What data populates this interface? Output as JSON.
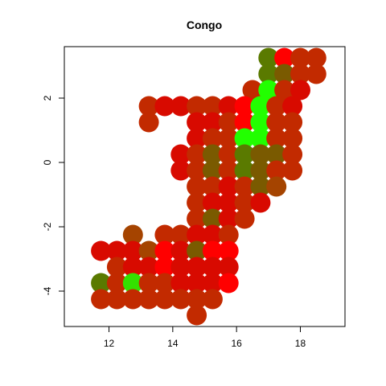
{
  "chart_data": {
    "type": "scatter",
    "title": "Congo",
    "xlabel": "",
    "ylabel": "",
    "xlim": [
      10.6,
      19.4
    ],
    "ylim": [
      -5.1,
      3.6
    ],
    "xticks": [
      12,
      14,
      16,
      18
    ],
    "yticks": [
      -4,
      -2,
      0,
      2
    ],
    "yticks_rotated": true,
    "grid": false,
    "legend": "none",
    "marker": "filled-circle",
    "colors": {
      "red": "#ff0000",
      "darkred": "#d80a00",
      "rust": "#c22a00",
      "olive": "#a54400",
      "brownolive": "#7a5a00",
      "darkgreen": "#5a7a00",
      "green": "#33e000",
      "brightgreen": "#22ff00"
    },
    "points": [
      {
        "x": 17.0,
        "y": 3.25,
        "c": "darkgreen"
      },
      {
        "x": 17.5,
        "y": 3.25,
        "c": "red"
      },
      {
        "x": 18.0,
        "y": 3.25,
        "c": "rust"
      },
      {
        "x": 18.5,
        "y": 3.25,
        "c": "rust"
      },
      {
        "x": 17.0,
        "y": 2.75,
        "c": "darkgreen"
      },
      {
        "x": 17.5,
        "y": 2.75,
        "c": "brownolive"
      },
      {
        "x": 18.0,
        "y": 2.75,
        "c": "rust"
      },
      {
        "x": 18.5,
        "y": 2.75,
        "c": "rust"
      },
      {
        "x": 16.5,
        "y": 2.25,
        "c": "rust"
      },
      {
        "x": 17.0,
        "y": 2.25,
        "c": "brightgreen"
      },
      {
        "x": 17.5,
        "y": 2.25,
        "c": "rust"
      },
      {
        "x": 18.0,
        "y": 2.25,
        "c": "darkred"
      },
      {
        "x": 13.25,
        "y": 1.75,
        "c": "rust"
      },
      {
        "x": 13.75,
        "y": 1.75,
        "c": "darkred"
      },
      {
        "x": 14.25,
        "y": 1.75,
        "c": "darkred"
      },
      {
        "x": 14.75,
        "y": 1.75,
        "c": "rust"
      },
      {
        "x": 15.25,
        "y": 1.75,
        "c": "rust"
      },
      {
        "x": 15.75,
        "y": 1.75,
        "c": "darkred"
      },
      {
        "x": 16.25,
        "y": 1.75,
        "c": "red"
      },
      {
        "x": 16.75,
        "y": 1.75,
        "c": "brightgreen"
      },
      {
        "x": 17.25,
        "y": 1.75,
        "c": "rust"
      },
      {
        "x": 17.75,
        "y": 1.75,
        "c": "darkred"
      },
      {
        "x": 13.25,
        "y": 1.25,
        "c": "rust"
      },
      {
        "x": 14.75,
        "y": 1.25,
        "c": "darkred"
      },
      {
        "x": 15.25,
        "y": 1.25,
        "c": "darkred"
      },
      {
        "x": 15.75,
        "y": 1.25,
        "c": "rust"
      },
      {
        "x": 16.25,
        "y": 1.25,
        "c": "red"
      },
      {
        "x": 16.75,
        "y": 1.25,
        "c": "brightgreen"
      },
      {
        "x": 17.25,
        "y": 1.25,
        "c": "rust"
      },
      {
        "x": 17.75,
        "y": 1.25,
        "c": "rust"
      },
      {
        "x": 14.75,
        "y": 0.75,
        "c": "darkred"
      },
      {
        "x": 15.25,
        "y": 0.75,
        "c": "rust"
      },
      {
        "x": 15.75,
        "y": 0.75,
        "c": "rust"
      },
      {
        "x": 16.25,
        "y": 0.75,
        "c": "brightgreen"
      },
      {
        "x": 16.75,
        "y": 0.75,
        "c": "brightgreen"
      },
      {
        "x": 17.25,
        "y": 0.75,
        "c": "rust"
      },
      {
        "x": 17.75,
        "y": 0.75,
        "c": "rust"
      },
      {
        "x": 14.25,
        "y": 0.25,
        "c": "darkred"
      },
      {
        "x": 14.75,
        "y": 0.25,
        "c": "rust"
      },
      {
        "x": 15.25,
        "y": 0.25,
        "c": "brownolive"
      },
      {
        "x": 15.75,
        "y": 0.25,
        "c": "rust"
      },
      {
        "x": 16.25,
        "y": 0.25,
        "c": "darkgreen"
      },
      {
        "x": 16.75,
        "y": 0.25,
        "c": "brownolive"
      },
      {
        "x": 17.25,
        "y": 0.25,
        "c": "brownolive"
      },
      {
        "x": 17.75,
        "y": 0.25,
        "c": "rust"
      },
      {
        "x": 14.25,
        "y": -0.25,
        "c": "darkred"
      },
      {
        "x": 14.75,
        "y": -0.25,
        "c": "rust"
      },
      {
        "x": 15.25,
        "y": -0.25,
        "c": "brownolive"
      },
      {
        "x": 15.75,
        "y": -0.25,
        "c": "rust"
      },
      {
        "x": 16.25,
        "y": -0.25,
        "c": "darkgreen"
      },
      {
        "x": 16.75,
        "y": -0.25,
        "c": "brownolive"
      },
      {
        "x": 17.25,
        "y": -0.25,
        "c": "rust"
      },
      {
        "x": 17.75,
        "y": -0.25,
        "c": "rust"
      },
      {
        "x": 14.75,
        "y": -0.75,
        "c": "rust"
      },
      {
        "x": 15.25,
        "y": -0.75,
        "c": "rust"
      },
      {
        "x": 15.75,
        "y": -0.75,
        "c": "darkred"
      },
      {
        "x": 16.25,
        "y": -0.75,
        "c": "rust"
      },
      {
        "x": 16.75,
        "y": -0.75,
        "c": "brownolive"
      },
      {
        "x": 17.25,
        "y": -0.75,
        "c": "olive"
      },
      {
        "x": 14.75,
        "y": -1.25,
        "c": "rust"
      },
      {
        "x": 15.25,
        "y": -1.25,
        "c": "darkred"
      },
      {
        "x": 15.75,
        "y": -1.25,
        "c": "darkred"
      },
      {
        "x": 16.25,
        "y": -1.25,
        "c": "rust"
      },
      {
        "x": 16.75,
        "y": -1.25,
        "c": "darkred"
      },
      {
        "x": 14.75,
        "y": -1.75,
        "c": "rust"
      },
      {
        "x": 15.25,
        "y": -1.75,
        "c": "brownolive"
      },
      {
        "x": 15.75,
        "y": -1.75,
        "c": "darkred"
      },
      {
        "x": 16.25,
        "y": -1.75,
        "c": "rust"
      },
      {
        "x": 13.75,
        "y": -2.25,
        "c": "rust"
      },
      {
        "x": 14.25,
        "y": -2.25,
        "c": "rust"
      },
      {
        "x": 14.75,
        "y": -2.25,
        "c": "darkred"
      },
      {
        "x": 15.25,
        "y": -2.25,
        "c": "darkred"
      },
      {
        "x": 15.75,
        "y": -2.25,
        "c": "rust"
      },
      {
        "x": 12.75,
        "y": -2.25,
        "c": "olive"
      },
      {
        "x": 11.75,
        "y": -2.75,
        "c": "darkred"
      },
      {
        "x": 12.25,
        "y": -2.75,
        "c": "darkred"
      },
      {
        "x": 12.75,
        "y": -2.75,
        "c": "darkred"
      },
      {
        "x": 13.25,
        "y": -2.75,
        "c": "olive"
      },
      {
        "x": 13.75,
        "y": -2.75,
        "c": "red"
      },
      {
        "x": 14.25,
        "y": -2.75,
        "c": "darkred"
      },
      {
        "x": 14.75,
        "y": -2.75,
        "c": "brownolive"
      },
      {
        "x": 15.25,
        "y": -2.75,
        "c": "red"
      },
      {
        "x": 15.75,
        "y": -2.75,
        "c": "red"
      },
      {
        "x": 12.25,
        "y": -3.25,
        "c": "rust"
      },
      {
        "x": 12.75,
        "y": -3.25,
        "c": "darkred"
      },
      {
        "x": 13.25,
        "y": -3.25,
        "c": "darkred"
      },
      {
        "x": 13.75,
        "y": -3.25,
        "c": "red"
      },
      {
        "x": 14.25,
        "y": -3.25,
        "c": "darkred"
      },
      {
        "x": 14.75,
        "y": -3.25,
        "c": "darkred"
      },
      {
        "x": 15.25,
        "y": -3.25,
        "c": "darkred"
      },
      {
        "x": 15.75,
        "y": -3.25,
        "c": "darkred"
      },
      {
        "x": 11.75,
        "y": -3.75,
        "c": "darkgreen"
      },
      {
        "x": 12.25,
        "y": -3.75,
        "c": "rust"
      },
      {
        "x": 12.75,
        "y": -3.75,
        "c": "green"
      },
      {
        "x": 13.25,
        "y": -3.75,
        "c": "rust"
      },
      {
        "x": 13.75,
        "y": -3.75,
        "c": "rust"
      },
      {
        "x": 14.25,
        "y": -3.75,
        "c": "darkred"
      },
      {
        "x": 14.75,
        "y": -3.75,
        "c": "darkred"
      },
      {
        "x": 15.25,
        "y": -3.75,
        "c": "darkred"
      },
      {
        "x": 15.75,
        "y": -3.75,
        "c": "red"
      },
      {
        "x": 11.75,
        "y": -4.25,
        "c": "rust"
      },
      {
        "x": 12.25,
        "y": -4.25,
        "c": "rust"
      },
      {
        "x": 12.75,
        "y": -4.25,
        "c": "rust"
      },
      {
        "x": 13.25,
        "y": -4.25,
        "c": "rust"
      },
      {
        "x": 13.75,
        "y": -4.25,
        "c": "rust"
      },
      {
        "x": 14.25,
        "y": -4.25,
        "c": "rust"
      },
      {
        "x": 14.75,
        "y": -4.25,
        "c": "rust"
      },
      {
        "x": 15.25,
        "y": -4.25,
        "c": "rust"
      },
      {
        "x": 14.75,
        "y": -4.75,
        "c": "rust"
      }
    ]
  }
}
